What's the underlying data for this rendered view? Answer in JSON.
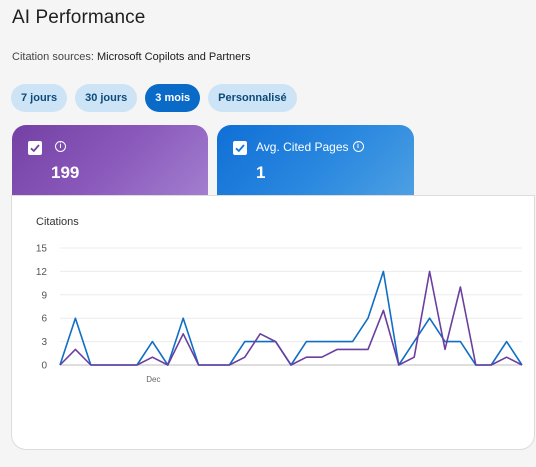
{
  "header": {
    "title": "AI Performance"
  },
  "source": {
    "label": "Citation sources:",
    "value": "Microsoft Copilots and Partners"
  },
  "ranges": [
    {
      "label": "7 jours",
      "active": false
    },
    {
      "label": "30 jours",
      "active": false
    },
    {
      "label": "3 mois",
      "active": true
    },
    {
      "label": "Personnalisé",
      "active": false
    }
  ],
  "cards": [
    {
      "label": "",
      "value": "199",
      "checked": true,
      "color": "#7a46ad"
    },
    {
      "label": "Avg. Cited Pages",
      "value": "1",
      "checked": true,
      "color": "#1f7fdb"
    }
  ],
  "chart_data": {
    "type": "line",
    "title": "Citations",
    "ylim": [
      0,
      15
    ],
    "yticks": [
      "15",
      "12",
      "9",
      "6",
      "3",
      "0"
    ],
    "xtick_labels": [
      {
        "index": 6,
        "label": "Dec"
      }
    ],
    "series": [
      {
        "color": "#0f6fc6",
        "values": [
          0,
          6,
          0,
          0,
          0,
          0,
          3,
          0,
          6,
          0,
          0,
          0,
          3,
          3,
          3,
          0,
          3,
          3,
          3,
          3,
          6,
          12,
          0,
          3,
          6,
          3,
          3,
          0,
          0,
          3,
          0
        ]
      },
      {
        "color": "#6b3fa0",
        "values": [
          0,
          2,
          0,
          0,
          0,
          0,
          1,
          0,
          4,
          0,
          0,
          0,
          1,
          4,
          3,
          0,
          1,
          1,
          2,
          2,
          2,
          7,
          0,
          1,
          12,
          2,
          10,
          0,
          0,
          1,
          0
        ]
      }
    ]
  }
}
